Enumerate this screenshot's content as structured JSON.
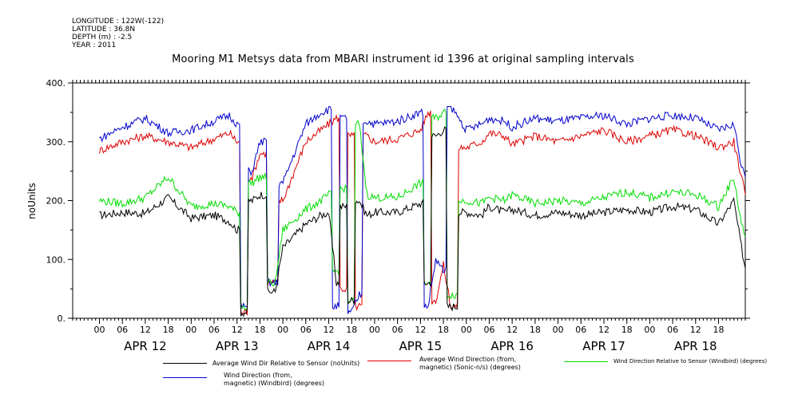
{
  "meta": {
    "longitude": "LONGITUDE : 122W(-122)",
    "latitude": "LATITUDE : 36.8N",
    "depth": "DEPTH (m) : -2.5",
    "year": "YEAR : 2011"
  },
  "title": "Mooring M1 Metsys data from MBARI instrument id 1396 at original sampling intervals",
  "colors": {
    "series1": "#000000",
    "series2": "#dd0000",
    "series3": "#00dd00",
    "series4": "#0000cc"
  },
  "legend": {
    "s1": "Average Wind Dir Relative to Sensor (noUnits)",
    "s2_line1": "Average Wind Direction (from,",
    "s2_line2": "magnetic) (Sonic-n/s) (degrees)",
    "s3": "Wind Direction Relative to Sensor (Windbird) (degrees)",
    "s4_line1": "Wind Direction (from,",
    "s4_line2": "magnetic) (Windbird) (degrees)"
  },
  "chart_data": {
    "type": "line",
    "ylabel": "noUnits",
    "ylim": [
      0,
      400
    ],
    "yticks": [
      "0.",
      "100.",
      "200.",
      "300.",
      "400."
    ],
    "xlim_hours": [
      0,
      170
    ],
    "hour_tick_labels": [
      "00",
      "06",
      "12",
      "18",
      "00",
      "06",
      "12",
      "18",
      "00",
      "06",
      "12",
      "18",
      "00",
      "06",
      "12",
      "18",
      "00",
      "06",
      "12",
      "18",
      "00",
      "06",
      "12",
      "18",
      "00",
      "06",
      "12",
      "18"
    ],
    "day_labels": [
      "APR 12",
      "APR 13",
      "APR 14",
      "APR 15",
      "APR 16",
      "APR 17",
      "APR 18"
    ],
    "grid": false,
    "series": [
      {
        "name": "Average Wind Dir Relative to Sensor (noUnits)",
        "x": [
          0,
          6,
          12,
          18,
          24,
          30,
          34,
          36,
          38,
          40,
          42,
          46,
          48,
          54,
          58,
          60,
          62,
          64,
          66,
          68,
          70,
          72,
          78,
          84,
          86,
          88,
          90,
          92,
          96,
          100,
          102,
          106,
          108,
          114,
          120,
          126,
          132,
          138,
          144,
          150,
          156,
          162,
          166,
          168,
          169
        ],
        "y": [
          175,
          180,
          178,
          205,
          170,
          175,
          165,
          150,
          10,
          200,
          210,
          45,
          120,
          160,
          175,
          180,
          60,
          190,
          30,
          200,
          175,
          180,
          180,
          195,
          60,
          310,
          320,
          20,
          180,
          175,
          190,
          180,
          185,
          175,
          180,
          175,
          180,
          185,
          180,
          190,
          185,
          160,
          200,
          120,
          85
        ]
      },
      {
        "name": "Average Wind Direction (from, magnetic) (Sonic-n/s) (degrees)",
        "x": [
          0,
          6,
          12,
          18,
          24,
          30,
          34,
          36,
          38,
          40,
          42,
          46,
          48,
          54,
          58,
          60,
          62,
          64,
          66,
          68,
          70,
          72,
          78,
          84,
          86,
          88,
          90,
          92,
          96,
          100,
          102,
          106,
          108,
          114,
          120,
          126,
          132,
          138,
          144,
          150,
          156,
          162,
          166,
          168,
          169
        ],
        "y": [
          285,
          300,
          310,
          300,
          290,
          305,
          315,
          300,
          10,
          240,
          280,
          60,
          200,
          300,
          320,
          330,
          340,
          50,
          310,
          20,
          310,
          300,
          305,
          320,
          350,
          30,
          90,
          20,
          290,
          300,
          315,
          310,
          295,
          310,
          300,
          310,
          320,
          300,
          310,
          320,
          310,
          290,
          300,
          240,
          210
        ]
      },
      {
        "name": "Wind Direction Relative to Sensor (Windbird) (degrees)",
        "x": [
          0,
          6,
          12,
          18,
          24,
          30,
          34,
          36,
          38,
          40,
          42,
          46,
          48,
          54,
          58,
          60,
          62,
          64,
          66,
          68,
          70,
          72,
          78,
          84,
          86,
          88,
          90,
          92,
          96,
          100,
          102,
          106,
          108,
          114,
          120,
          126,
          132,
          138,
          144,
          150,
          156,
          162,
          166,
          168,
          169
        ],
        "y": [
          200,
          195,
          205,
          240,
          190,
          195,
          190,
          180,
          20,
          230,
          240,
          60,
          150,
          185,
          200,
          210,
          80,
          220,
          30,
          330,
          210,
          205,
          205,
          230,
          60,
          340,
          350,
          40,
          200,
          195,
          205,
          200,
          210,
          195,
          200,
          195,
          205,
          215,
          205,
          215,
          210,
          190,
          240,
          160,
          140
        ]
      },
      {
        "name": "Wind Direction (from, magnetic) (Windbird) (degrees)",
        "x": [
          0,
          6,
          12,
          18,
          24,
          30,
          34,
          36,
          38,
          40,
          42,
          46,
          48,
          54,
          58,
          60,
          62,
          64,
          66,
          68,
          70,
          72,
          78,
          84,
          86,
          88,
          90,
          92,
          96,
          100,
          102,
          106,
          108,
          114,
          120,
          126,
          132,
          138,
          144,
          150,
          156,
          162,
          166,
          168,
          169
        ],
        "y": [
          305,
          325,
          340,
          315,
          320,
          335,
          345,
          330,
          20,
          250,
          300,
          60,
          230,
          330,
          350,
          355,
          20,
          340,
          10,
          40,
          335,
          330,
          335,
          350,
          20,
          100,
          80,
          360,
          320,
          330,
          340,
          335,
          325,
          340,
          335,
          340,
          345,
          330,
          340,
          345,
          340,
          320,
          330,
          260,
          240
        ]
      }
    ]
  }
}
